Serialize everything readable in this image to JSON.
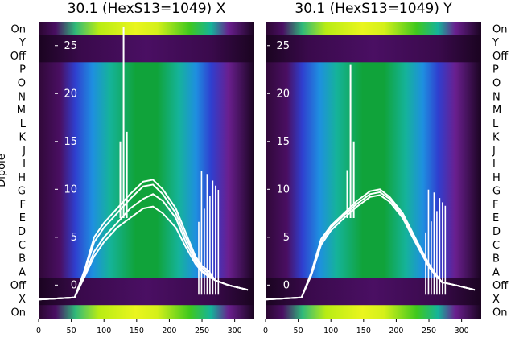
{
  "chart_data": {
    "type": "heatmap",
    "ylabel": "Dipole",
    "row_labels_top_to_bottom": [
      "On",
      "Y",
      "Off",
      "P",
      "O",
      "N",
      "M",
      "L",
      "K",
      "J",
      "I",
      "H",
      "G",
      "F",
      "E",
      "D",
      "C",
      "B",
      "A",
      "Off",
      "X",
      "On"
    ],
    "x_ticks": [
      0,
      50,
      100,
      150,
      200,
      250,
      300
    ],
    "xlim": [
      0,
      330
    ],
    "overlay_ticks": [
      0,
      5,
      10,
      15,
      20,
      25
    ],
    "overlay_ylim": [
      -3.5,
      27.5
    ],
    "line_color": "#ffffff",
    "colormap": [
      "#180018",
      "#4a0f63",
      "#6a1f8f",
      "#2f3fcf",
      "#1e8fe0",
      "#15b39a",
      "#10a33a",
      "#3fc81e",
      "#b8ec14",
      "#eaf51e"
    ],
    "panels": [
      {
        "title": "30.1 (HexS13=1049) X",
        "spike_x": [
          125,
          130,
          135
        ],
        "spike_y": [
          15,
          27,
          16
        ],
        "traces": [
          {
            "x": [
              0,
              55,
              70,
              85,
              100,
              120,
              140,
              160,
              175,
              190,
              210,
              225,
              240,
              250,
              260,
              270,
              290,
              320
            ],
            "y": [
              -1.5,
              -1.3,
              1.5,
              5.0,
              6.5,
              8.0,
              9.5,
              10.8,
              11.0,
              10.0,
              8.0,
              5.5,
              3.0,
              2.0,
              1.5,
              0.5,
              0.0,
              -0.5
            ]
          },
          {
            "x": [
              0,
              55,
              70,
              85,
              100,
              120,
              140,
              160,
              175,
              190,
              210,
              225,
              240,
              250,
              260,
              270,
              290,
              320
            ],
            "y": [
              -1.5,
              -1.3,
              1.3,
              4.5,
              6.0,
              7.5,
              9.0,
              10.3,
              10.5,
              9.5,
              7.5,
              5.0,
              2.8,
              1.8,
              1.2,
              0.5,
              0.0,
              -0.5
            ]
          },
          {
            "x": [
              0,
              55,
              70,
              85,
              100,
              120,
              140,
              160,
              175,
              190,
              210,
              225,
              240,
              250,
              260,
              270,
              290,
              320
            ],
            "y": [
              -1.5,
              -1.3,
              1.0,
              3.5,
              5.0,
              6.5,
              8.0,
              9.0,
              9.5,
              8.8,
              7.0,
              4.5,
              2.5,
              1.5,
              1.0,
              0.5,
              0.0,
              -0.5
            ]
          },
          {
            "x": [
              0,
              55,
              70,
              85,
              100,
              120,
              140,
              160,
              175,
              190,
              210,
              225,
              240,
              250,
              260,
              270,
              290,
              320
            ],
            "y": [
              -1.5,
              -1.3,
              0.8,
              3.0,
              4.5,
              6.0,
              7.0,
              8.0,
              8.2,
              7.5,
              6.0,
              4.0,
              2.2,
              1.4,
              0.9,
              0.5,
              0.0,
              -0.5
            ]
          }
        ],
        "burst_x": [
          245,
          275
        ],
        "burst_y": [
          -1,
          12
        ]
      },
      {
        "title": "30.1 (HexS13=1049) Y",
        "spike_x": [
          125,
          130,
          135
        ],
        "spike_y": [
          12,
          23,
          15
        ],
        "traces": [
          {
            "x": [
              0,
              55,
              70,
              85,
              100,
              120,
              140,
              160,
              175,
              190,
              210,
              225,
              240,
              250,
              260,
              270,
              290,
              320
            ],
            "y": [
              -1.5,
              -1.3,
              1.3,
              4.8,
              6.2,
              7.5,
              8.8,
              9.8,
              10.0,
              9.2,
              7.5,
              5.5,
              3.5,
              2.2,
              1.2,
              0.3,
              0.0,
              -0.5
            ]
          },
          {
            "x": [
              0,
              55,
              70,
              85,
              100,
              120,
              140,
              160,
              175,
              190,
              210,
              225,
              240,
              250,
              260,
              270,
              290,
              320
            ],
            "y": [
              -1.5,
              -1.3,
              1.2,
              4.5,
              6.0,
              7.3,
              8.5,
              9.5,
              9.7,
              9.0,
              7.2,
              5.3,
              3.3,
              2.0,
              1.1,
              0.3,
              0.0,
              -0.5
            ]
          },
          {
            "x": [
              0,
              55,
              70,
              85,
              100,
              120,
              140,
              160,
              175,
              190,
              210,
              225,
              240,
              250,
              260,
              270,
              290,
              320
            ],
            "y": [
              -1.5,
              -1.3,
              1.0,
              4.2,
              5.7,
              7.0,
              8.2,
              9.2,
              9.4,
              8.7,
              7.0,
              5.0,
              3.1,
              1.9,
              1.0,
              0.3,
              0.0,
              -0.5
            ]
          }
        ],
        "burst_x": [
          245,
          275
        ],
        "burst_y": [
          -1,
          10
        ]
      }
    ]
  }
}
